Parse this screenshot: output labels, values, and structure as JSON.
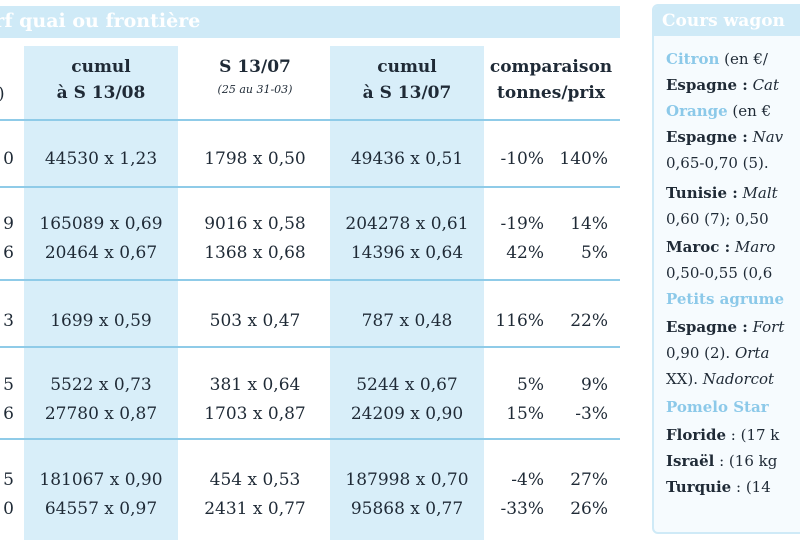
{
  "section": {
    "left_title": "arf quai ou frontière",
    "right_title": "Cours wagon"
  },
  "table": {
    "headers": {
      "col1_fragment": ")",
      "col2": [
        "cumul",
        "à S 13/08"
      ],
      "col3": [
        "S 13/07",
        "(25 au 31-03)"
      ],
      "col4": [
        "cumul",
        "à S 13/07"
      ],
      "col5": [
        "comparaison",
        "tonnes/prix"
      ]
    },
    "rows": [
      {
        "c1": "0",
        "c2": "44530 x 1,23",
        "c3": "1798 x 0,50",
        "c4": "49436 x 0,51",
        "c5a": "-10%",
        "c5b": "140%"
      },
      {
        "c1": "9",
        "c2": "165089 x 0,69",
        "c3": "9016 x 0,58",
        "c4": "204278 x 0,61",
        "c5a": "-19%",
        "c5b": "14%"
      },
      {
        "c1": "6",
        "c2": "20464 x 0,67",
        "c3": "1368 x 0,68",
        "c4": "14396 x 0,64",
        "c5a": "42%",
        "c5b": "5%"
      },
      {
        "c1": "3",
        "c2": "1699 x 0,59",
        "c3": "503 x 0,47",
        "c4": "787 x 0,48",
        "c5a": "116%",
        "c5b": "22%"
      },
      {
        "c1": "5",
        "c2": "5522 x 0,73",
        "c3": "381 x 0,64",
        "c4": "5244 x 0,67",
        "c5a": "5%",
        "c5b": "9%"
      },
      {
        "c1": "6",
        "c2": "27780 x 0,87",
        "c3": "1703 x 0,87",
        "c4": "24209 x 0,90",
        "c5a": "15%",
        "c5b": "-3%"
      },
      {
        "c1": "5",
        "c2": "181067 x 0,90",
        "c3": "454 x 0,53",
        "c4": "187998 x 0,70",
        "c5a": "-4%",
        "c5b": "27%"
      },
      {
        "c1": "0",
        "c2": "64557 x 0,97",
        "c3": "2431 x 0,77",
        "c4": "95868 x 0,77",
        "c5a": "-33%",
        "c5b": "26%"
      }
    ]
  },
  "right_panel": {
    "lines": [
      {
        "blue": "Citron",
        "rest": " (en €/"
      },
      {
        "bold": "Espagne :",
        "italic": " Cat"
      },
      {
        "blue": "Orange",
        "rest": " (en €"
      },
      {
        "bold": "Espagne :",
        "italic": " Nav"
      },
      {
        "rest": "0,65-0,70 (5)."
      },
      {
        "bold": "Tunisie :",
        "italic": " Malt"
      },
      {
        "rest": "0,60 (7); 0,50"
      },
      {
        "bold": "Maroc :",
        "italic": " Maro"
      },
      {
        "rest": "0,50-0,55 (0,6"
      },
      {
        "blue": "Petits agrume"
      },
      {
        "bold": "Espagne :",
        "italic": " Fort"
      },
      {
        "rest": "0,90 (2).",
        "italic": " Orta"
      },
      {
        "rest": "XX).",
        "italic": " Nadorcot"
      },
      {
        "blue": "Pomelo Star"
      },
      {
        "bold": "Floride",
        "rest": " : (17 k"
      },
      {
        "bold": "Israël",
        "rest": " : (16 kg"
      },
      {
        "bold": "Turquie",
        "rest": " : (14"
      }
    ]
  }
}
